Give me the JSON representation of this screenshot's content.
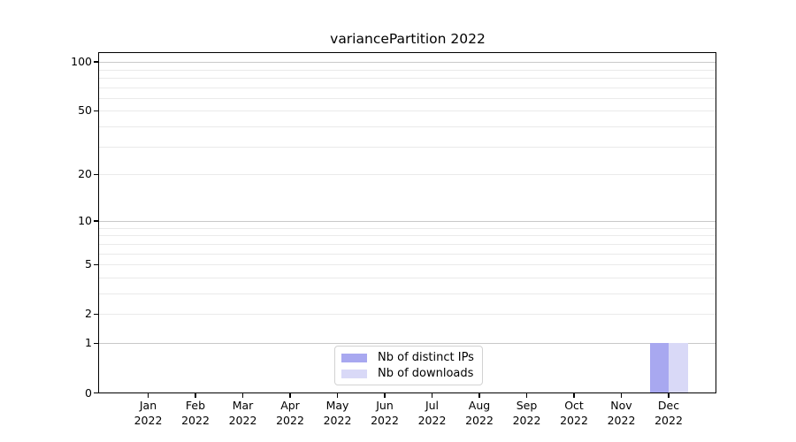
{
  "title": "variancePartition 2022",
  "chart_data": {
    "type": "bar",
    "title": "variancePartition 2022",
    "x": {
      "categories": [
        "Jan",
        "Feb",
        "Mar",
        "Apr",
        "May",
        "Jun",
        "Jul",
        "Aug",
        "Sep",
        "Oct",
        "Nov",
        "Dec"
      ],
      "year_label": "2022"
    },
    "y": {
      "scale": "log1p",
      "ticks": [
        0,
        1,
        2,
        5,
        10,
        20,
        50,
        100
      ],
      "major_gridlines": [
        1,
        10,
        100
      ],
      "minor_gridlines": [
        2,
        3,
        4,
        5,
        6,
        7,
        8,
        9,
        20,
        30,
        40,
        50,
        60,
        70,
        80,
        90
      ],
      "range": [
        0,
        113
      ]
    },
    "series": [
      {
        "name": "Nb of distinct IPs",
        "color": "#a8a8f0",
        "values": [
          0,
          0,
          0,
          0,
          0,
          0,
          0,
          0,
          0,
          0,
          0,
          1
        ]
      },
      {
        "name": "Nb of downloads",
        "color": "#d9d9f7",
        "values": [
          0,
          0,
          0,
          0,
          0,
          0,
          0,
          0,
          0,
          0,
          0,
          1
        ]
      }
    ],
    "legend": {
      "position": "bottom-center",
      "entries": [
        "Nb of distinct IPs",
        "Nb of downloads"
      ]
    },
    "grid": "on",
    "colors": {
      "major_gridline": "#c9c9c9",
      "minor_gridline": "#eaeaea",
      "axis": "#000000",
      "text": "#000000",
      "legend_border": "#d2d2d2"
    }
  }
}
